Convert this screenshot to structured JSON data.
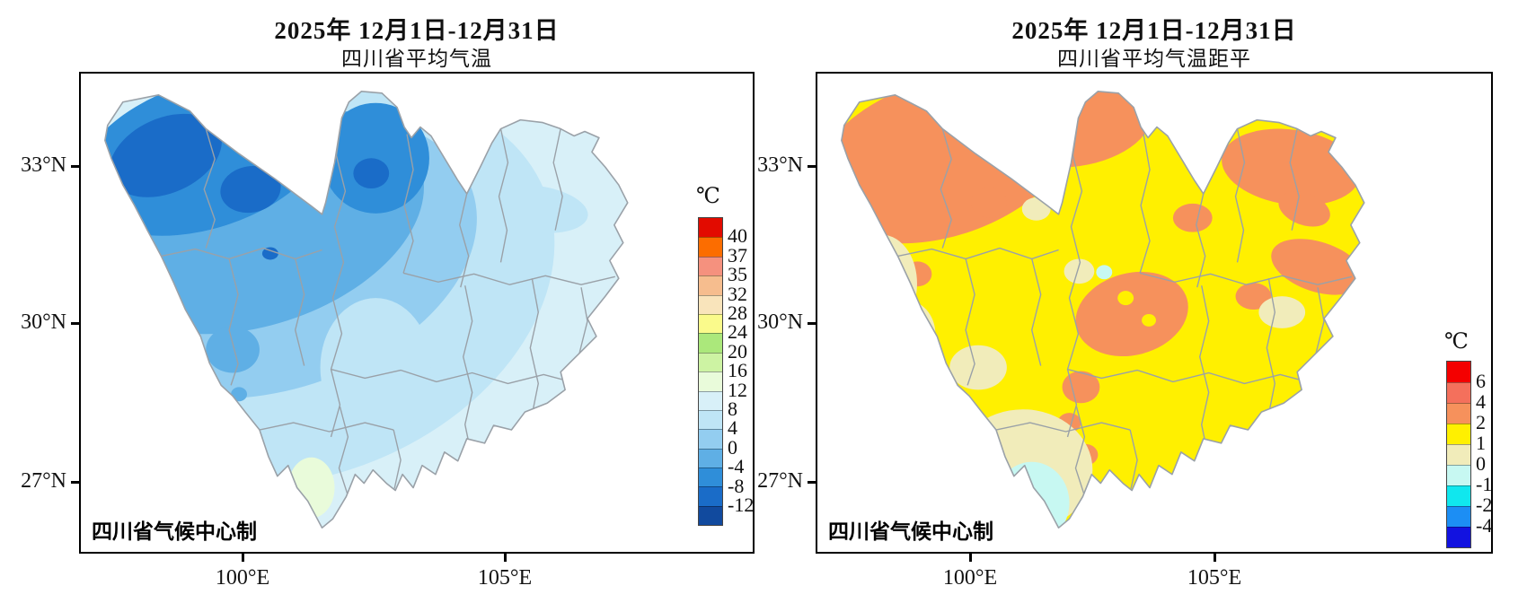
{
  "panels": [
    {
      "title": "2025年 12月1日-12月31日",
      "subtitle": "四川省平均气温",
      "attribution": "四川省气候中心制",
      "axes": {
        "y_ticks": [
          "33°N",
          "30°N",
          "27°N"
        ],
        "x_ticks": [
          "100°E",
          "105°E"
        ]
      },
      "legend": {
        "unit": "℃",
        "boundary_labels": [
          "40",
          "37",
          "35",
          "32",
          "28",
          "24",
          "20",
          "16",
          "12",
          "8",
          "4",
          "0",
          "-4",
          "-8",
          "-12"
        ],
        "colors": [
          "#e20b00",
          "#fc6d00",
          "#f5917e",
          "#f6bd8e",
          "#f9e4bb",
          "#fafa8b",
          "#abe87b",
          "#cdf3a3",
          "#e9fbda",
          "#d8f0f8",
          "#bfe5f6",
          "#93cdf0",
          "#5fafe5",
          "#2f8ed9",
          "#1a6cc8",
          "#114a9e"
        ]
      }
    },
    {
      "title": "2025年 12月1日-12月31日",
      "subtitle": "四川省平均气温距平",
      "attribution": "四川省气候中心制",
      "axes": {
        "y_ticks": [
          "33°N",
          "30°N",
          "27°N"
        ],
        "x_ticks": [
          "100°E",
          "105°E"
        ]
      },
      "legend": {
        "unit": "℃",
        "boundary_labels": [
          "6",
          "4",
          "2",
          "1",
          "0",
          "-1",
          "-2",
          "-4"
        ],
        "colors": [
          "#f40000",
          "#f4705c",
          "#f6915c",
          "#fff000",
          "#f1ecba",
          "#c7f8f2",
          "#10e7ee",
          "#1c8ef4",
          "#1212e0"
        ]
      }
    }
  ],
  "chart_data": [
    {
      "type": "choropleth_map",
      "title": "2025年 12月1日-12月31日",
      "subtitle": "四川省平均气温",
      "unit": "℃",
      "legend_boundaries": [
        40,
        37,
        35,
        32,
        28,
        24,
        20,
        16,
        12,
        8,
        4,
        0,
        -4,
        -8,
        -12
      ],
      "x_ticks": [
        "100°E",
        "105°E"
      ],
      "y_ticks": [
        "33°N",
        "30°N",
        "27°N"
      ],
      "legend_position": "inside-right"
    },
    {
      "type": "choropleth_map",
      "title": "2025年 12月1日-12月31日",
      "subtitle": "四川省平均气温距平",
      "unit": "℃",
      "legend_boundaries": [
        6,
        4,
        2,
        1,
        0,
        -1,
        -2,
        -4
      ],
      "x_ticks": [
        "100°E",
        "105°E"
      ],
      "y_ticks": [
        "33°N",
        "30°N",
        "27°N"
      ],
      "legend_position": "inside-right"
    }
  ]
}
